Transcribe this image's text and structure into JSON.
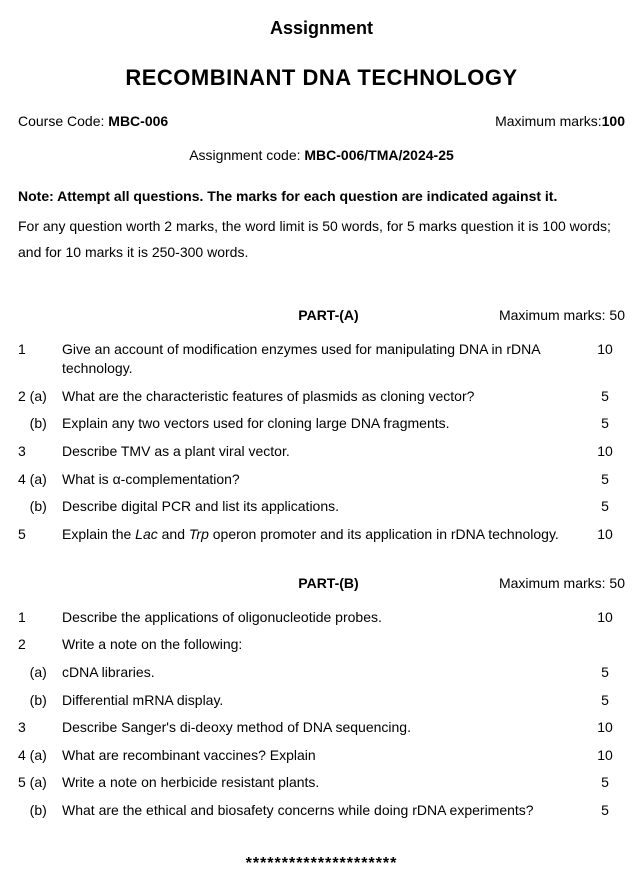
{
  "header": {
    "label": "Assignment",
    "title": "RECOMBINANT DNA TECHNOLOGY",
    "course_code_prefix": "Course Code: ",
    "course_code": "MBC-006",
    "max_marks_prefix": "Maximum marks:",
    "max_marks": "100",
    "assignment_code_prefix": "Assignment code: ",
    "assignment_code": "MBC-006/TMA/2024-25",
    "note": "Note: Attempt all questions. The marks for each question are indicated against it.",
    "word_limit": "For any question worth 2 marks, the word limit is 50 words, for 5 marks question it is 100 words; and for 10 marks it is 250-300 words."
  },
  "part_a": {
    "label": "PART-(A)",
    "max_label": "Maximum marks: 50",
    "rows": [
      {
        "num": "1",
        "text": "Give an account of modification enzymes used for manipulating DNA in rDNA technology.",
        "marks": "10"
      },
      {
        "num": "2 (a)",
        "text": "What are the characteristic features of plasmids as cloning vector?",
        "marks": "5"
      },
      {
        "num": "   (b)",
        "text": "Explain any two vectors used for cloning large DNA fragments.",
        "marks": "5"
      },
      {
        "num": "3",
        "text": "Describe TMV as a plant viral vector.",
        "marks": "10"
      },
      {
        "num": "4 (a)",
        "text": "What is α-complementation?",
        "marks": "5"
      },
      {
        "num": "   (b)",
        "text": "Describe digital PCR and list its applications.",
        "marks": "5"
      },
      {
        "num": "5",
        "text_html": "Explain the <span class=\"italic\">Lac</span> and <span class=\"italic\">Trp</span> operon promoter and its application in rDNA technology.",
        "marks": "10"
      }
    ]
  },
  "part_b": {
    "label": "PART-(B)",
    "max_label": "Maximum marks: 50",
    "rows": [
      {
        "num": "1",
        "text": "Describe the applications of oligonucleotide probes.",
        "marks": "10"
      },
      {
        "num": "2",
        "text": "Write a note on the following:",
        "marks": ""
      },
      {
        "num": "   (a)",
        "text": "cDNA libraries.",
        "marks": "5"
      },
      {
        "num": "   (b)",
        "text": "Differential mRNA display.",
        "marks": "5"
      },
      {
        "num": "3",
        "text": "Describe Sanger's di-deoxy method of DNA sequencing.",
        "marks": "10"
      },
      {
        "num": "4 (a)",
        "text": "What are recombinant vaccines? Explain",
        "marks": "10"
      },
      {
        "num": "5 (a)",
        "text": "Write a note on herbicide resistant plants.",
        "marks": "5"
      },
      {
        "num": "   (b)",
        "text": "What are the ethical and biosafety concerns while doing rDNA experiments?",
        "marks": "5"
      }
    ]
  },
  "sep": "*********************"
}
